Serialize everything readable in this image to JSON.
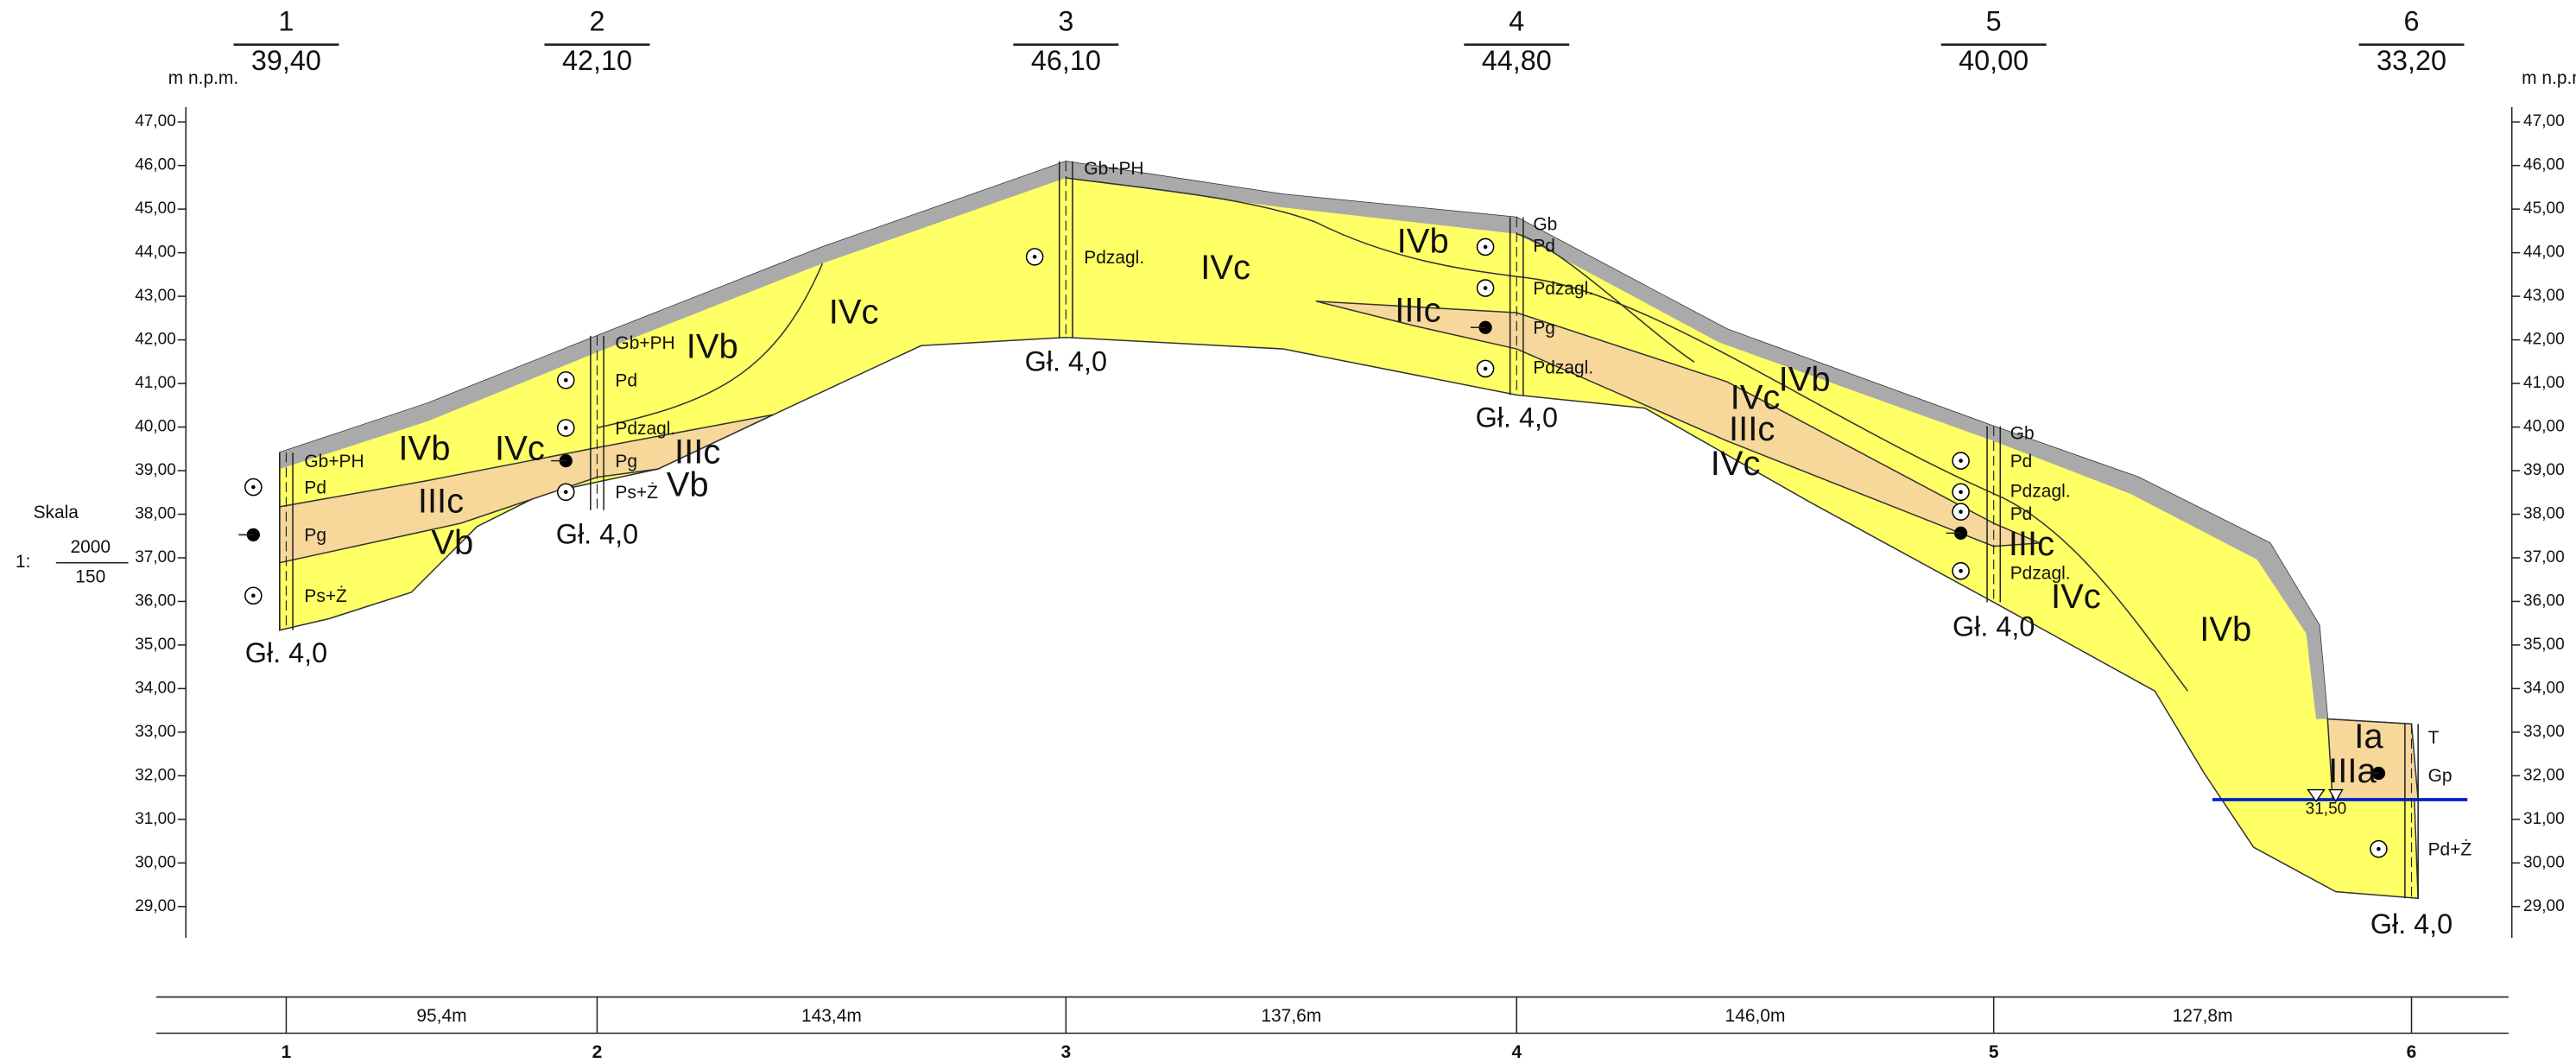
{
  "header": {
    "unit": "m n.p.m.",
    "boreholes": [
      {
        "number": "1",
        "elevation": "39,40"
      },
      {
        "number": "2",
        "elevation": "42,10"
      },
      {
        "number": "3",
        "elevation": "46,10"
      },
      {
        "number": "4",
        "elevation": "44,80"
      },
      {
        "number": "5",
        "elevation": "40,00"
      },
      {
        "number": "6",
        "elevation": "33,20"
      }
    ]
  },
  "scale": {
    "label": "Skala",
    "ratio": "1:",
    "horizontal": "2000",
    "vertical": "150"
  },
  "axis": {
    "ticks": [
      "47,00",
      "46,00",
      "45,00",
      "44,00",
      "43,00",
      "42,00",
      "41,00",
      "40,00",
      "39,00",
      "38,00",
      "37,00",
      "36,00",
      "35,00",
      "34,00",
      "33,00",
      "32,00",
      "31,00",
      "30,00",
      "29,00"
    ]
  },
  "layers": [
    "IVb",
    "IVc",
    "IIIc",
    "Vb",
    "IVb",
    "IVc",
    "IIIc",
    "Vb",
    "IVc",
    "IVb",
    "IIIc",
    "IVc",
    "IVb",
    "IIIc",
    "IVc",
    "IIIc",
    "IVc",
    "IVb",
    "Ia",
    "IIIa"
  ],
  "soils": [
    "Gb+PH",
    "Pd",
    "Pg",
    "Ps+Ż",
    "Gb+PH",
    "Pd",
    "Pdzagl.",
    "Pg",
    "Ps+Ż",
    "Gb+PH",
    "Pdzagl.",
    "Gb",
    "Pd",
    "Pdzagl.",
    "Pg",
    "Pdzagl.",
    "Gb",
    "Pd",
    "Pdzagl.",
    "Pd",
    "Pdzagl.",
    "T",
    "Gp",
    "Pd+Ż"
  ],
  "depths": [
    "Gł. 4,0",
    "Gł. 4,0",
    "Gł. 4,0",
    "Gł. 4,0",
    "Gł. 4,0",
    "Gł. 4,0"
  ],
  "water_level": "31,50",
  "distances": [
    "95,4m",
    "143,4m",
    "137,6m",
    "146,0m",
    "127,8m"
  ],
  "footer_numbers": [
    "1",
    "2",
    "3",
    "4",
    "5",
    "6"
  ]
}
